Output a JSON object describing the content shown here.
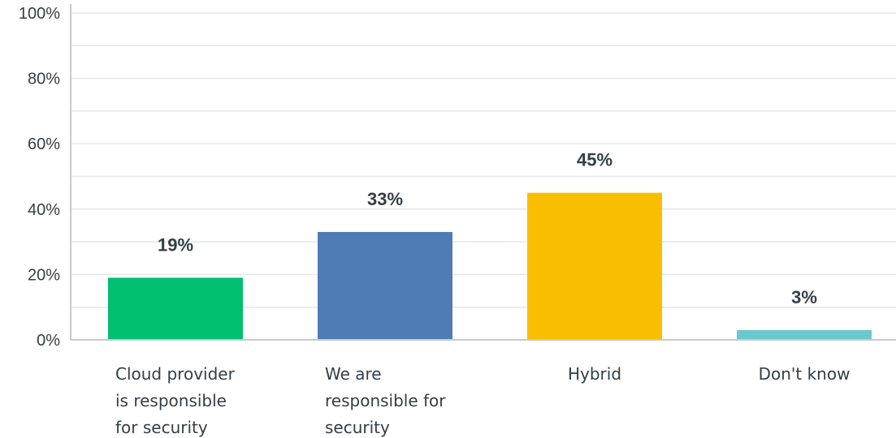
{
  "chart_data": {
    "type": "bar",
    "categories": [
      [
        "Cloud provider",
        "is responsible",
        "for security"
      ],
      [
        "We are",
        "responsible for",
        "security"
      ],
      [
        "Hybrid"
      ],
      [
        "Don't know"
      ]
    ],
    "values": [
      19,
      33,
      45,
      3
    ],
    "value_labels": [
      "19%",
      "33%",
      "45%",
      "3%"
    ],
    "colors": [
      "#00bf6f",
      "#507cb6",
      "#f9be00",
      "#6bc8cd"
    ],
    "yticks": [
      "0%",
      "20%",
      "40%",
      "60%",
      "80%",
      "100%"
    ],
    "ylim": [
      0,
      100
    ],
    "grid": true,
    "title": "",
    "xlabel": "",
    "ylabel": ""
  }
}
